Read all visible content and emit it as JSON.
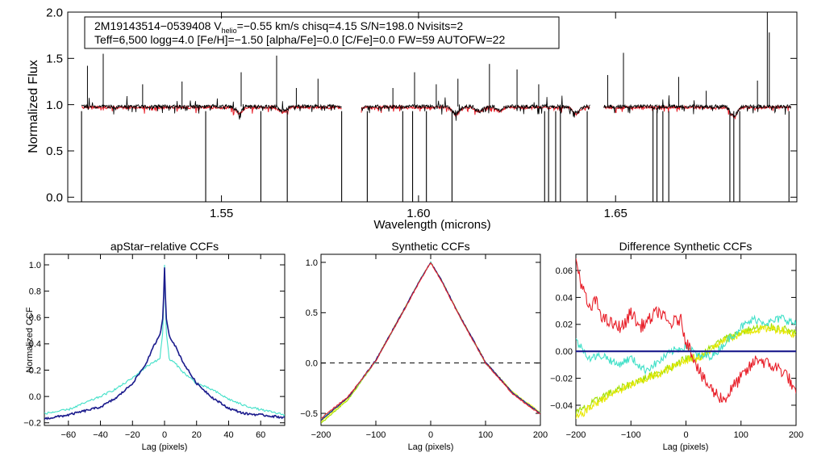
{
  "chart_data": [
    {
      "type": "line",
      "id": "spectrum",
      "title": "",
      "xlabel": "Wavelength (microns)",
      "ylabel": "Normalized Flux",
      "xlim": [
        1.511,
        1.696
      ],
      "ylim": [
        -0.05,
        2.0
      ],
      "xticks": [
        1.55,
        1.6,
        1.65
      ],
      "xtick_labels": [
        "1.55",
        "1.60",
        "1.65"
      ],
      "yticks": [
        0.0,
        0.5,
        1.0,
        1.5,
        2.0
      ],
      "ytick_labels": [
        "0.0",
        "0.5",
        "1.0",
        "1.5",
        "2.0"
      ],
      "annotation": {
        "line1_pre": "2M19143514−0539408  V",
        "line1_sub": "helio",
        "line1_post": "=−0.55 km/s  chisq=4.15  S/N=198.0  Nvisits=2",
        "line2": "Teff=6,500 logg=4.0 [Fe/H]=−1.50 [alpha/Fe]=0.0 [C/Fe]=0.0 FW=59 AUTOFW=22"
      },
      "chips": [
        [
          1.5145,
          1.5805
        ],
        [
          1.5855,
          1.6435
        ],
        [
          1.647,
          1.6945
        ]
      ],
      "series": [
        {
          "name": "observed",
          "color": "#000000",
          "baseline": 0.98
        },
        {
          "name": "model",
          "color": "#e8202a",
          "baseline": 0.97
        }
      ],
      "absorption_lines": [
        {
          "x": 1.5545,
          "depth": 0.06
        },
        {
          "x": 1.5655,
          "depth": 0.05
        },
        {
          "x": 1.6095,
          "depth": 0.08
        },
        {
          "x": 1.6155,
          "depth": 0.05
        },
        {
          "x": 1.6205,
          "depth": 0.04
        },
        {
          "x": 1.64,
          "depth": 0.07
        },
        {
          "x": 1.68,
          "depth": 0.1
        }
      ],
      "dropouts": [
        1.5145,
        1.546,
        1.56,
        1.5667,
        1.5805,
        1.587,
        1.596,
        1.5985,
        1.602,
        1.6085,
        1.632,
        1.633,
        1.6348,
        1.636,
        1.6428,
        1.6595,
        1.6605,
        1.662,
        1.6635,
        1.679,
        1.68,
        1.6815,
        1.694
      ],
      "spikes": [
        {
          "x": 1.516,
          "y": 1.42
        },
        {
          "x": 1.52,
          "y": 1.55
        },
        {
          "x": 1.53,
          "y": 1.22
        },
        {
          "x": 1.54,
          "y": 1.25
        },
        {
          "x": 1.555,
          "y": 1.35
        },
        {
          "x": 1.564,
          "y": 1.53
        },
        {
          "x": 1.569,
          "y": 1.18
        },
        {
          "x": 1.5745,
          "y": 1.28
        },
        {
          "x": 1.5935,
          "y": 1.18
        },
        {
          "x": 1.599,
          "y": 1.35
        },
        {
          "x": 1.6045,
          "y": 1.22
        },
        {
          "x": 1.61,
          "y": 1.28
        },
        {
          "x": 1.618,
          "y": 1.44
        },
        {
          "x": 1.625,
          "y": 1.38
        },
        {
          "x": 1.6305,
          "y": 1.22
        },
        {
          "x": 1.648,
          "y": 1.32
        },
        {
          "x": 1.652,
          "y": 1.56
        },
        {
          "x": 1.666,
          "y": 1.3
        },
        {
          "x": 1.673,
          "y": 1.15
        },
        {
          "x": 1.686,
          "y": 1.26
        },
        {
          "x": 1.6885,
          "y": 2.0
        },
        {
          "x": 1.689,
          "y": 1.78
        }
      ]
    },
    {
      "type": "line",
      "id": "apstar-ccf",
      "title": "apStar−relative CCFs",
      "xlabel": "Lag (pixels)",
      "ylabel": "Normalized CCF",
      "xlim": [
        -75,
        75
      ],
      "ylim": [
        -0.22,
        1.08
      ],
      "xticks": [
        -60,
        -40,
        -20,
        0,
        20,
        40,
        60
      ],
      "xtick_labels": [
        "−60",
        "−40",
        "−20",
        "0",
        "20",
        "40",
        "60"
      ],
      "yticks": [
        -0.2,
        0.0,
        0.2,
        0.4,
        0.6,
        0.8,
        1.0
      ],
      "ytick_labels": [
        "−0.2",
        "0.0",
        "0.2",
        "0.4",
        "0.6",
        "0.8",
        "1.0"
      ],
      "series": [
        {
          "name": "visit-1",
          "color": "#40e0c8",
          "x": [
            -75,
            -60,
            -40,
            -30,
            -20,
            -12,
            -6,
            -3,
            -1,
            0,
            1,
            3,
            6,
            12,
            20,
            30,
            40,
            50,
            60,
            75
          ],
          "y": [
            -0.13,
            -0.1,
            0.0,
            0.06,
            0.14,
            0.22,
            0.27,
            0.28,
            0.5,
            1.0,
            0.5,
            0.28,
            0.26,
            0.18,
            0.1,
            0.05,
            -0.02,
            -0.07,
            -0.1,
            -0.14
          ]
        },
        {
          "name": "visit-2",
          "color": "#1a1a8c",
          "x": [
            -75,
            -60,
            -40,
            -30,
            -20,
            -12,
            -6,
            -3,
            -1,
            0,
            1,
            3,
            6,
            12,
            20,
            30,
            40,
            50,
            60,
            75
          ],
          "y": [
            -0.17,
            -0.14,
            -0.08,
            -0.01,
            0.1,
            0.24,
            0.4,
            0.46,
            0.6,
            0.98,
            0.6,
            0.46,
            0.4,
            0.25,
            0.1,
            -0.01,
            -0.09,
            -0.13,
            -0.14,
            -0.16
          ]
        }
      ]
    },
    {
      "type": "line",
      "id": "synthetic-ccf",
      "title": "Synthetic CCFs",
      "xlabel": "Lag (pixels)",
      "ylabel": "",
      "xlim": [
        -200,
        200
      ],
      "ylim": [
        -0.62,
        1.08
      ],
      "xticks": [
        -200,
        -100,
        0,
        100,
        200
      ],
      "xtick_labels": [
        "−200",
        "−100",
        "0",
        "100",
        "200"
      ],
      "yticks": [
        -0.5,
        0.0,
        0.5,
        1.0
      ],
      "ytick_labels": [
        "−0.5",
        "0.0",
        "0.5",
        "1.0"
      ],
      "hline": 0.0,
      "series": [
        {
          "name": "ccf-1",
          "color": "#a0e000",
          "x": [
            -200,
            -150,
            -100,
            -50,
            -20,
            0,
            20,
            50,
            100,
            150,
            200
          ],
          "y": [
            -0.6,
            -0.36,
            0.02,
            0.52,
            0.82,
            1.0,
            0.82,
            0.5,
            0.0,
            -0.3,
            -0.5
          ]
        },
        {
          "name": "ccf-2",
          "color": "#ffff20",
          "x": [
            -200,
            -150,
            -100,
            -50,
            -20,
            0,
            20,
            50,
            100,
            150,
            200
          ],
          "y": [
            -0.58,
            -0.35,
            0.03,
            0.52,
            0.82,
            1.0,
            0.82,
            0.5,
            0.01,
            -0.29,
            -0.49
          ]
        },
        {
          "name": "ccf-3",
          "color": "#40e0c8",
          "x": [
            -200,
            -150,
            -100,
            -50,
            -20,
            0,
            20,
            50,
            100,
            150,
            200
          ],
          "y": [
            -0.56,
            -0.34,
            0.02,
            0.51,
            0.82,
            1.0,
            0.82,
            0.49,
            0.0,
            -0.3,
            -0.5
          ]
        },
        {
          "name": "ccf-4",
          "color": "#1a1a8c",
          "x": [
            -200,
            -150,
            -100,
            -50,
            -20,
            0,
            20,
            50,
            100,
            150,
            200
          ],
          "y": [
            -0.57,
            -0.34,
            0.03,
            0.52,
            0.82,
            1.0,
            0.82,
            0.5,
            0.01,
            -0.3,
            -0.5
          ]
        },
        {
          "name": "ccf-5",
          "color": "#e8202a",
          "x": [
            -200,
            -150,
            -100,
            -50,
            -20,
            0,
            20,
            50,
            100,
            150,
            200
          ],
          "y": [
            -0.55,
            -0.33,
            0.02,
            0.51,
            0.81,
            1.0,
            0.81,
            0.49,
            0.0,
            -0.31,
            -0.51
          ]
        }
      ]
    },
    {
      "type": "line",
      "id": "difference-ccf",
      "title": "Difference Synthetic CCFs",
      "xlabel": "Lag (pixels)",
      "ylabel": "",
      "xlim": [
        -200,
        200
      ],
      "ylim": [
        -0.055,
        0.072
      ],
      "xticks": [
        -200,
        -100,
        0,
        100,
        200
      ],
      "xtick_labels": [
        "−200",
        "−100",
        "0",
        "100",
        "200"
      ],
      "yticks": [
        -0.04,
        -0.02,
        0.0,
        0.02,
        0.04,
        0.06
      ],
      "ytick_labels": [
        "−0.04",
        "−0.02",
        "0.00",
        "0.02",
        "0.04",
        "0.06"
      ],
      "series": [
        {
          "name": "diff-blue",
          "color": "#1a1a8c",
          "x": [
            -200,
            200
          ],
          "y": [
            0.0,
            0.0
          ]
        },
        {
          "name": "diff-green",
          "color": "#a0e000",
          "x": [
            -200,
            -175,
            -150,
            -125,
            -100,
            -75,
            -50,
            -25,
            0,
            25,
            50,
            75,
            100,
            125,
            150,
            175,
            200
          ],
          "y": [
            -0.046,
            -0.04,
            -0.033,
            -0.029,
            -0.024,
            -0.02,
            -0.016,
            -0.011,
            -0.005,
            -0.004,
            0.004,
            0.01,
            0.014,
            0.017,
            0.018,
            0.017,
            0.013
          ]
        },
        {
          "name": "diff-yellow",
          "color": "#e8e800",
          "x": [
            -200,
            -175,
            -150,
            -125,
            -100,
            -75,
            -50,
            -25,
            0,
            25,
            50,
            75,
            100,
            125,
            150,
            175,
            200
          ],
          "y": [
            -0.05,
            -0.042,
            -0.035,
            -0.03,
            -0.025,
            -0.021,
            -0.017,
            -0.012,
            -0.006,
            -0.005,
            0.003,
            0.009,
            0.013,
            0.016,
            0.017,
            0.016,
            0.012
          ]
        },
        {
          "name": "diff-cyan",
          "color": "#40e0c8",
          "x": [
            -200,
            -175,
            -150,
            -125,
            -100,
            -75,
            -50,
            -25,
            0,
            25,
            50,
            75,
            100,
            125,
            150,
            175,
            200
          ],
          "y": [
            0.008,
            -0.005,
            -0.003,
            -0.01,
            -0.005,
            -0.014,
            -0.008,
            0.0,
            0.004,
            -0.004,
            -0.003,
            0.008,
            0.018,
            0.024,
            0.021,
            0.025,
            0.02
          ]
        },
        {
          "name": "diff-red",
          "color": "#e8202a",
          "x": [
            -200,
            -190,
            -175,
            -165,
            -150,
            -125,
            -110,
            -100,
            -85,
            -70,
            -50,
            -30,
            -10,
            0,
            15,
            30,
            50,
            70,
            90,
            110,
            130,
            150,
            170,
            185,
            200
          ],
          "y": [
            0.068,
            0.05,
            0.03,
            0.038,
            0.024,
            0.018,
            0.02,
            0.03,
            0.018,
            0.022,
            0.03,
            0.02,
            0.024,
            0.008,
            -0.005,
            -0.02,
            -0.03,
            -0.036,
            -0.024,
            -0.015,
            -0.005,
            -0.01,
            -0.013,
            -0.018,
            -0.034
          ]
        }
      ]
    }
  ]
}
